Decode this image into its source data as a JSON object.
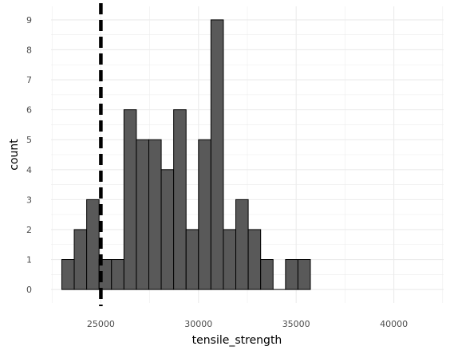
{
  "chart_data": {
    "type": "bar",
    "subtype": "histogram",
    "xlabel": "tensile_strength",
    "ylabel": "count",
    "xlim": [
      22450,
      42550
    ],
    "ylim": [
      -0.45,
      9.45
    ],
    "x_ticks": [
      25000,
      30000,
      35000,
      40000
    ],
    "x_tick_labels": [
      "25000",
      "30000",
      "35000",
      "40000"
    ],
    "y_ticks": [
      0,
      1,
      2,
      3,
      4,
      5,
      6,
      7,
      8,
      9
    ],
    "y_tick_labels": [
      "0",
      "1",
      "2",
      "3",
      "4",
      "5",
      "6",
      "7",
      "8",
      "9"
    ],
    "bins": [
      {
        "x_start": 23000,
        "x_end": 23636,
        "count": 1
      },
      {
        "x_start": 23636,
        "x_end": 24273,
        "count": 2
      },
      {
        "x_start": 24273,
        "x_end": 24909,
        "count": 3
      },
      {
        "x_start": 24909,
        "x_end": 25545,
        "count": 1
      },
      {
        "x_start": 25545,
        "x_end": 26182,
        "count": 1
      },
      {
        "x_start": 26182,
        "x_end": 26818,
        "count": 6
      },
      {
        "x_start": 26818,
        "x_end": 27455,
        "count": 5
      },
      {
        "x_start": 27455,
        "x_end": 28091,
        "count": 5
      },
      {
        "x_start": 28091,
        "x_end": 28727,
        "count": 4
      },
      {
        "x_start": 28727,
        "x_end": 29364,
        "count": 6
      },
      {
        "x_start": 29364,
        "x_end": 30000,
        "count": 2
      },
      {
        "x_start": 30000,
        "x_end": 30636,
        "count": 5
      },
      {
        "x_start": 30636,
        "x_end": 31273,
        "count": 9
      },
      {
        "x_start": 31273,
        "x_end": 31909,
        "count": 2
      },
      {
        "x_start": 31909,
        "x_end": 32545,
        "count": 3
      },
      {
        "x_start": 32545,
        "x_end": 33182,
        "count": 2
      },
      {
        "x_start": 33182,
        "x_end": 33818,
        "count": 1
      },
      {
        "x_start": 33818,
        "x_end": 34455,
        "count": 0
      },
      {
        "x_start": 34455,
        "x_end": 35091,
        "count": 1
      },
      {
        "x_start": 35091,
        "x_end": 35727,
        "count": 1
      }
    ],
    "reference_line": {
      "orientation": "vertical",
      "x": 25000,
      "style": "dashed",
      "color": "#000000"
    },
    "bar_fill": "#595959",
    "bar_edge": "#000000",
    "background": "#ffffff",
    "grid_color": "#ebebeb",
    "grid": true,
    "legend": "none"
  }
}
